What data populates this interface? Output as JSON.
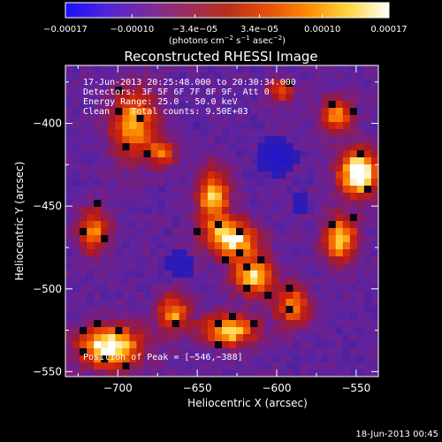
{
  "colorbar": {
    "tick_labels": [
      "−0.00017",
      "−0.00010",
      "−3.4e−05",
      "3.4e−05",
      "0.00010",
      "0.00017"
    ],
    "tick_values": [
      -0.00017,
      -0.0001,
      -3.4e-05,
      3.4e-05,
      0.0001,
      0.00017
    ],
    "range": [
      -0.00017,
      0.00017
    ],
    "units_main": "(photons cm",
    "units_sup1": "−2",
    "units_mid": " s",
    "units_sup2": "−1",
    "units_mid2": " asec",
    "units_sup3": "−2",
    "units_end": ")",
    "colors": [
      "#1a10ff",
      "#5022d8",
      "#7a2aa0",
      "#9c2d60",
      "#b82e1a",
      "#e4500a",
      "#ff8a00",
      "#ffd640",
      "#ffffff"
    ]
  },
  "title": "Reconstructed RHESSI Image",
  "annotations": [
    "17-Jun-2013 20:25:48.000 to 20:30:34.000",
    "Detectors: 3F 5F 6F 7F 8F 9F, Att 0",
    "Energy Range: 25.0 - 50.0 keV",
    "Clean    Total counts: 9.50E+03"
  ],
  "peak_label": "Position of Peak = [−546,−388]",
  "footer_date": "18-Jun-2013 00:45",
  "chart_data": {
    "type": "heatmap",
    "title": "Reconstructed RHESSI Image",
    "xlabel": "Heliocentric X (arcsec)",
    "ylabel": "Heliocentric Y (arcsec)",
    "xlim": [
      -733,
      -536
    ],
    "ylim": [
      -553,
      -365
    ],
    "x_ticks": [
      -700,
      -650,
      -600,
      -550
    ],
    "x_tick_labels": [
      "−700",
      "−650",
      "−600",
      "−550"
    ],
    "y_ticks": [
      -550,
      -500,
      -450,
      -400
    ],
    "y_tick_labels": [
      "−550",
      "−500",
      "−450",
      "−400"
    ],
    "peak": [
      -546,
      -388
    ],
    "bright_regions": [
      {
        "x": -705,
        "y": -535,
        "intensity": 0.92,
        "sx": 14,
        "sy": 9
      },
      {
        "x": -690,
        "y": -400,
        "intensity": 0.72,
        "sx": 10,
        "sy": 14
      },
      {
        "x": -640,
        "y": -445,
        "intensity": 0.75,
        "sx": 7,
        "sy": 12
      },
      {
        "x": -628,
        "y": -470,
        "intensity": 0.82,
        "sx": 12,
        "sy": 8
      },
      {
        "x": -615,
        "y": -492,
        "intensity": 0.78,
        "sx": 9,
        "sy": 8
      },
      {
        "x": -630,
        "y": -525,
        "intensity": 0.8,
        "sx": 12,
        "sy": 7
      },
      {
        "x": -665,
        "y": -515,
        "intensity": 0.65,
        "sx": 7,
        "sy": 8
      },
      {
        "x": -548,
        "y": -430,
        "intensity": 1.0,
        "sx": 9,
        "sy": 10
      },
      {
        "x": -560,
        "y": -470,
        "intensity": 0.75,
        "sx": 8,
        "sy": 10
      },
      {
        "x": -562,
        "y": -395,
        "intensity": 0.65,
        "sx": 7,
        "sy": 8
      },
      {
        "x": -590,
        "y": -510,
        "intensity": 0.6,
        "sx": 8,
        "sy": 9
      },
      {
        "x": -715,
        "y": -465,
        "intensity": 0.6,
        "sx": 7,
        "sy": 10
      },
      {
        "x": -672,
        "y": -418,
        "intensity": 0.55,
        "sx": 6,
        "sy": 6
      },
      {
        "x": -598,
        "y": -380,
        "intensity": 0.5,
        "sx": 6,
        "sy": 5
      }
    ],
    "dark_regions": [
      {
        "x": -600,
        "y": -420,
        "intensity": -0.6,
        "sx": 10,
        "sy": 9
      },
      {
        "x": -660,
        "y": -485,
        "intensity": -0.4,
        "sx": 9,
        "sy": 8
      },
      {
        "x": -585,
        "y": -450,
        "intensity": -0.35,
        "sx": 8,
        "sy": 8
      }
    ]
  }
}
